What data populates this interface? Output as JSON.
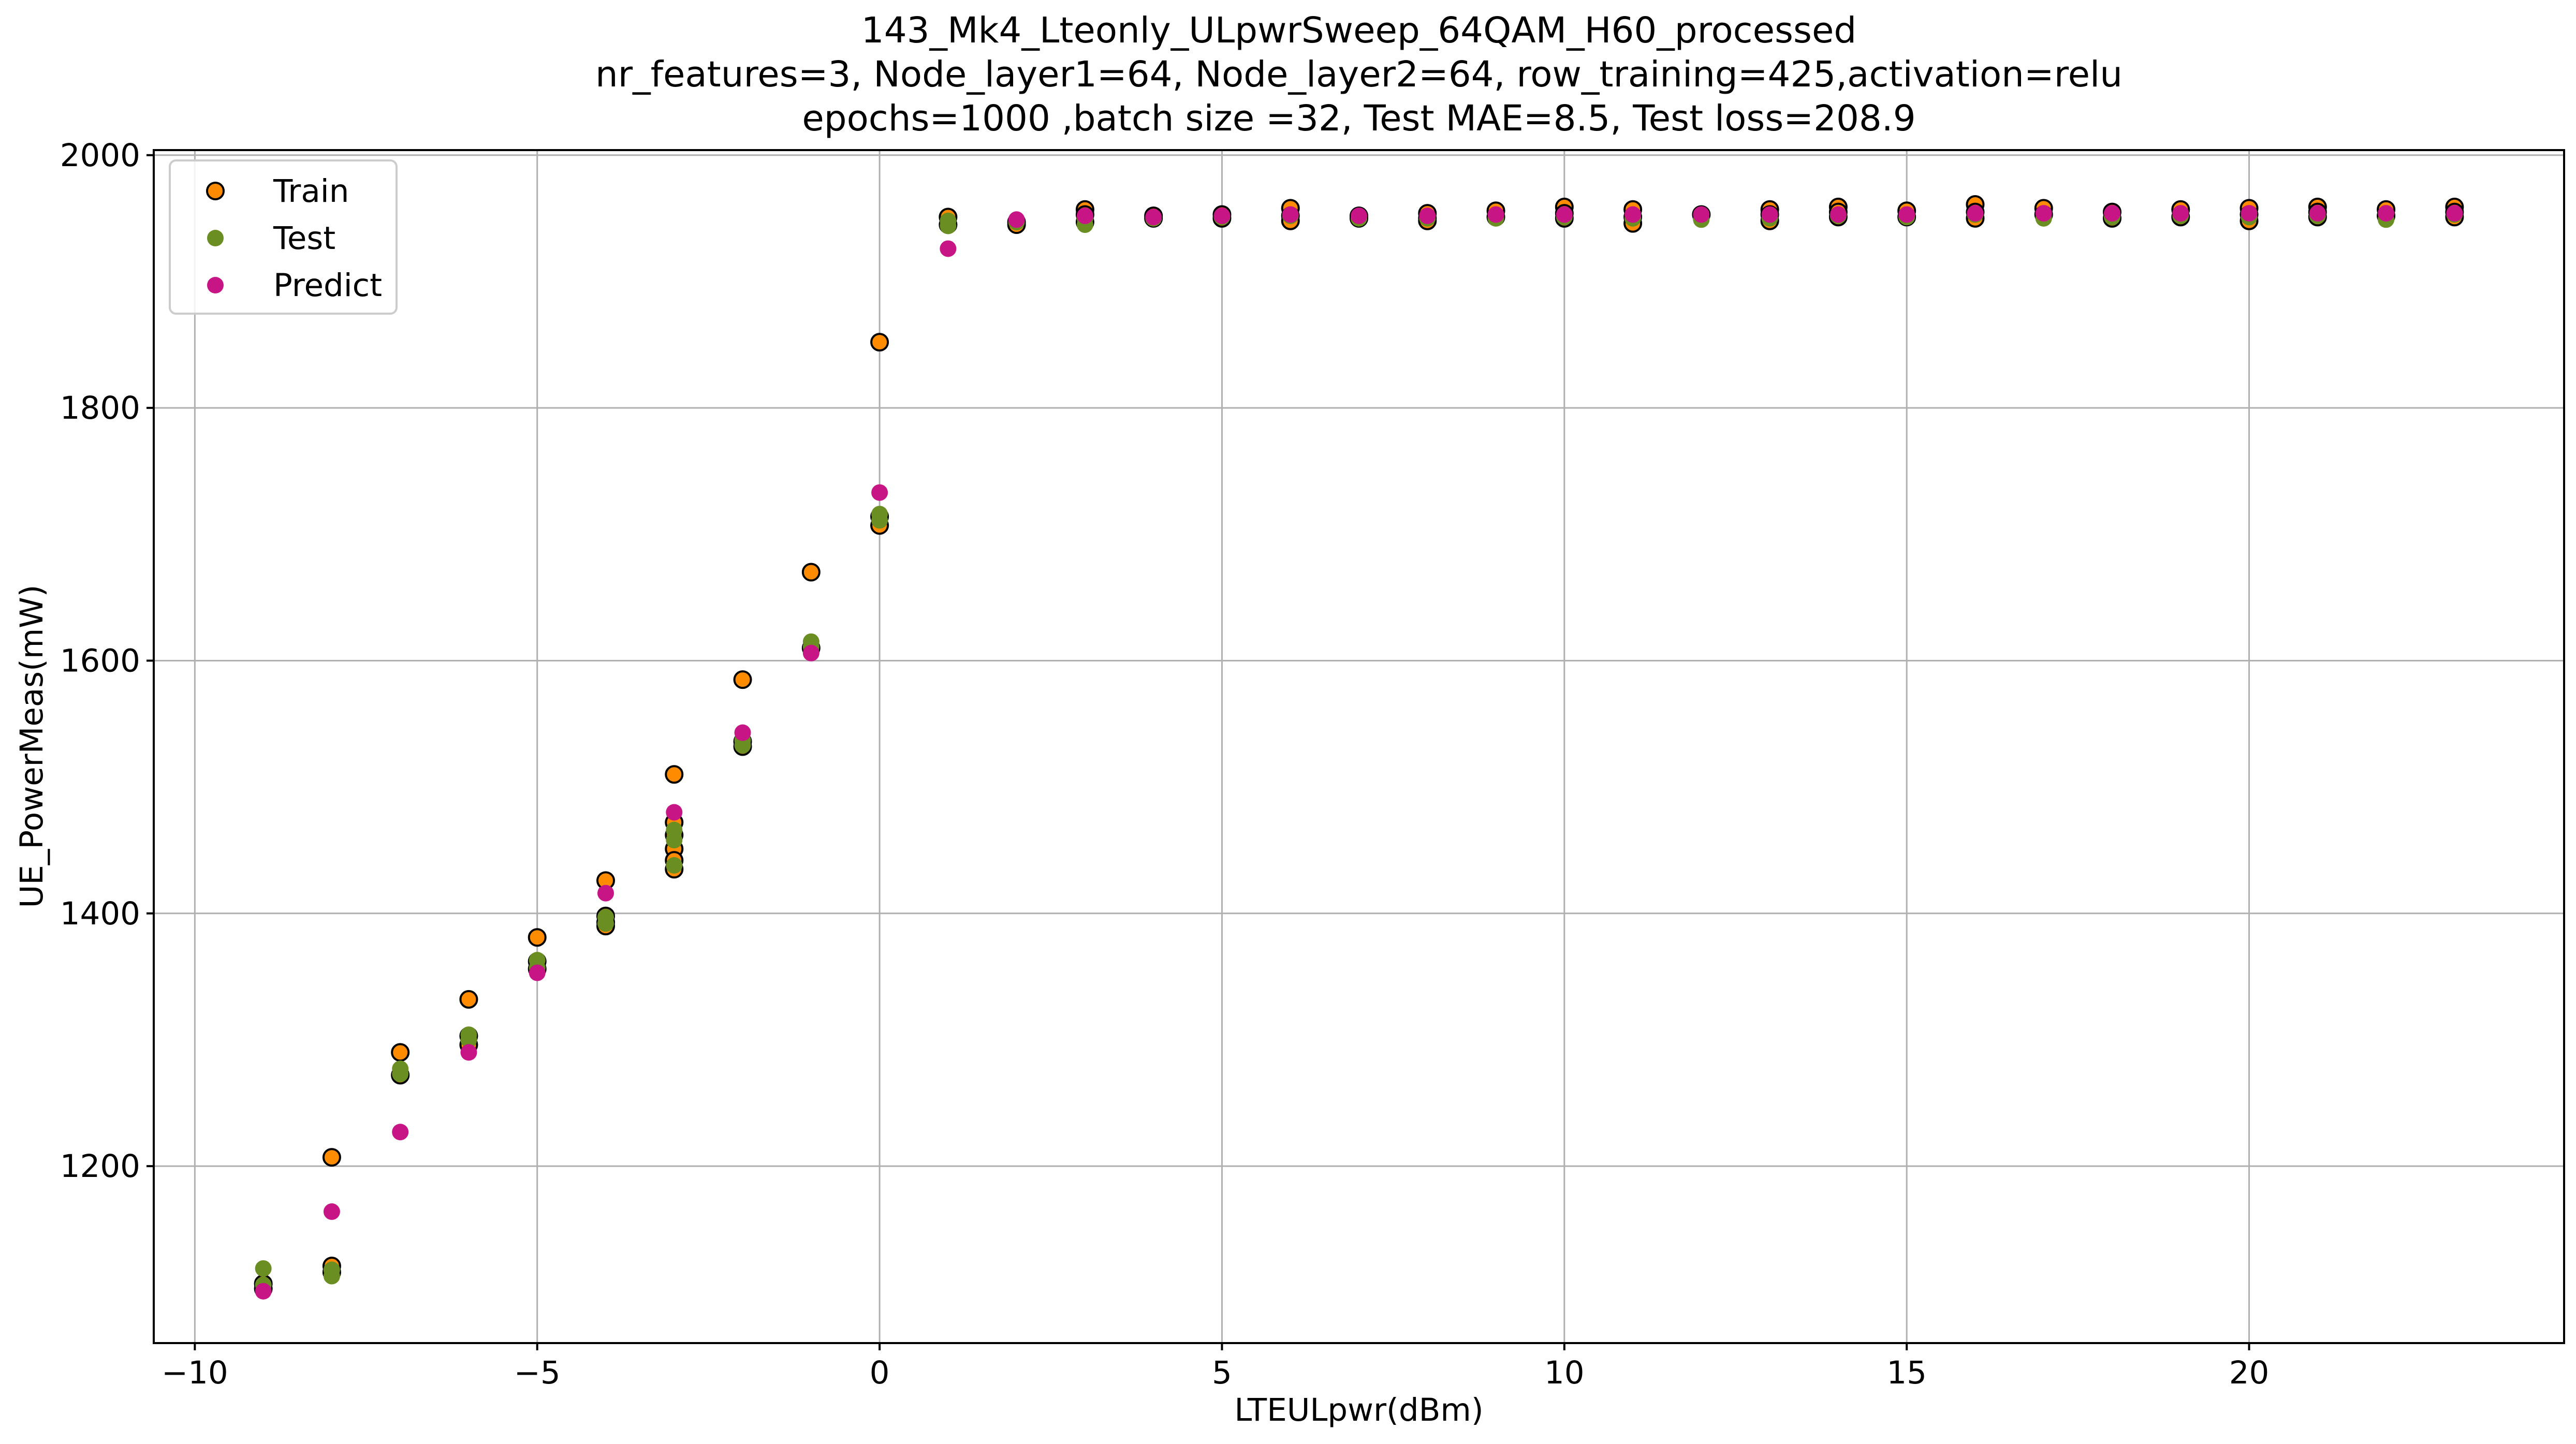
{
  "chart_data": {
    "type": "scatter",
    "title": [
      "143_Mk4_Lteonly_ULpwrSweep_64QAM_H60_processed",
      "nr_features=3, Node_layer1=64, Node_layer2=64, row_training=425,activation=relu",
      "epochs=1000 ,batch size =32, Test MAE=8.5, Test loss=208.9"
    ],
    "xlabel": "LTEULpwr(dBm)",
    "ylabel": "UE_PowerMeas(mW)",
    "xlim": [
      -10.6,
      24.6
    ],
    "ylim": [
      1060,
      2004
    ],
    "xticks": [
      -10,
      -5,
      0,
      5,
      10,
      15,
      20
    ],
    "xtick_labels": [
      "−10",
      "−5",
      "0",
      "5",
      "10",
      "15",
      "20"
    ],
    "yticks": [
      1200,
      1400,
      1600,
      1800,
      2000
    ],
    "ytick_labels": [
      "1200",
      "1400",
      "1600",
      "1800",
      "2000"
    ],
    "grid": true,
    "legend_position": "top-left",
    "series": [
      {
        "name": "Train",
        "color": "#ff8c00",
        "edgecolor": "#000000",
        "points": [
          [
            -9,
            1103
          ],
          [
            -9,
            1107
          ],
          [
            -8,
            1121
          ],
          [
            -8,
            1116
          ],
          [
            -8,
            1207
          ],
          [
            -7,
            1290
          ],
          [
            -7,
            1272
          ],
          [
            -6,
            1332
          ],
          [
            -6,
            1303
          ],
          [
            -6,
            1296
          ],
          [
            -5,
            1381
          ],
          [
            -5,
            1362
          ],
          [
            -5,
            1356
          ],
          [
            -4,
            1426
          ],
          [
            -4,
            1398
          ],
          [
            -4,
            1393
          ],
          [
            -4,
            1390
          ],
          [
            -3,
            1510
          ],
          [
            -3,
            1472
          ],
          [
            -3,
            1462
          ],
          [
            -3,
            1451
          ],
          [
            -3,
            1442
          ],
          [
            -3,
            1435
          ],
          [
            -2,
            1585
          ],
          [
            -2,
            1536
          ],
          [
            -2,
            1532
          ],
          [
            -1,
            1670
          ],
          [
            -1,
            1610
          ],
          [
            0,
            1852
          ],
          [
            0,
            1714
          ],
          [
            0,
            1707
          ],
          [
            1,
            1951
          ],
          [
            1,
            1945
          ],
          [
            2,
            1947
          ],
          [
            2,
            1945
          ],
          [
            3,
            1957
          ],
          [
            3,
            1953
          ],
          [
            3,
            1947
          ],
          [
            4,
            1952
          ],
          [
            4,
            1950
          ],
          [
            5,
            1953
          ],
          [
            5,
            1950
          ],
          [
            6,
            1958
          ],
          [
            6,
            1952
          ],
          [
            6,
            1948
          ],
          [
            7,
            1952
          ],
          [
            7,
            1950
          ],
          [
            8,
            1954
          ],
          [
            8,
            1950
          ],
          [
            8,
            1948
          ],
          [
            9,
            1956
          ],
          [
            9,
            1951
          ],
          [
            10,
            1959
          ],
          [
            10,
            1954
          ],
          [
            10,
            1950
          ],
          [
            11,
            1957
          ],
          [
            11,
            1951
          ],
          [
            11,
            1946
          ],
          [
            12,
            1953
          ],
          [
            13,
            1957
          ],
          [
            13,
            1953
          ],
          [
            13,
            1948
          ],
          [
            14,
            1959
          ],
          [
            14,
            1955
          ],
          [
            14,
            1951
          ],
          [
            15,
            1956
          ],
          [
            15,
            1951
          ],
          [
            16,
            1961
          ],
          [
            16,
            1955
          ],
          [
            16,
            1950
          ],
          [
            17,
            1958
          ],
          [
            17,
            1953
          ],
          [
            18,
            1955
          ],
          [
            18,
            1950
          ],
          [
            19,
            1957
          ],
          [
            19,
            1951
          ],
          [
            20,
            1958
          ],
          [
            20,
            1953
          ],
          [
            20,
            1948
          ],
          [
            21,
            1959
          ],
          [
            21,
            1955
          ],
          [
            21,
            1951
          ],
          [
            22,
            1957
          ],
          [
            22,
            1952
          ],
          [
            23,
            1959
          ],
          [
            23,
            1955
          ],
          [
            23,
            1951
          ]
        ]
      },
      {
        "name": "Test",
        "color": "#6b8e23",
        "edgecolor": null,
        "points": [
          [
            -9,
            1119
          ],
          [
            -9,
            1106
          ],
          [
            -8,
            1113
          ],
          [
            -8,
            1118
          ],
          [
            -7,
            1277
          ],
          [
            -7,
            1273
          ],
          [
            -6,
            1304
          ],
          [
            -6,
            1300
          ],
          [
            -5,
            1363
          ],
          [
            -5,
            1357
          ],
          [
            -4,
            1397
          ],
          [
            -4,
            1392
          ],
          [
            -3,
            1466
          ],
          [
            -3,
            1458
          ],
          [
            -3,
            1438
          ],
          [
            -2,
            1537
          ],
          [
            -2,
            1533
          ],
          [
            -1,
            1615
          ],
          [
            -1,
            1611
          ],
          [
            0,
            1716
          ],
          [
            0,
            1711
          ],
          [
            1,
            1948
          ],
          [
            1,
            1944
          ],
          [
            2,
            1947
          ],
          [
            3,
            1950
          ],
          [
            3,
            1945
          ],
          [
            4,
            1950
          ],
          [
            5,
            1951
          ],
          [
            6,
            1952
          ],
          [
            7,
            1950
          ],
          [
            8,
            1950
          ],
          [
            9,
            1950
          ],
          [
            10,
            1951
          ],
          [
            11,
            1950
          ],
          [
            12,
            1949
          ],
          [
            13,
            1950
          ],
          [
            14,
            1952
          ],
          [
            15,
            1951
          ],
          [
            16,
            1953
          ],
          [
            17,
            1950
          ],
          [
            18,
            1951
          ],
          [
            19,
            1952
          ],
          [
            20,
            1951
          ],
          [
            21,
            1952
          ],
          [
            22,
            1949
          ],
          [
            23,
            1953
          ]
        ]
      },
      {
        "name": "Predict",
        "color": "#c71585",
        "edgecolor": null,
        "points": [
          [
            -9,
            1101
          ],
          [
            -8,
            1164
          ],
          [
            -7,
            1227
          ],
          [
            -6,
            1290
          ],
          [
            -5,
            1353
          ],
          [
            -4,
            1416
          ],
          [
            -3,
            1480
          ],
          [
            -2,
            1543
          ],
          [
            -1,
            1606
          ],
          [
            0,
            1733
          ],
          [
            1,
            1926
          ],
          [
            2,
            1949
          ],
          [
            3,
            1952
          ],
          [
            4,
            1951
          ],
          [
            5,
            1952
          ],
          [
            6,
            1953
          ],
          [
            7,
            1952
          ],
          [
            8,
            1952
          ],
          [
            9,
            1953
          ],
          [
            10,
            1953
          ],
          [
            11,
            1953
          ],
          [
            12,
            1953
          ],
          [
            13,
            1953
          ],
          [
            14,
            1953
          ],
          [
            15,
            1953
          ],
          [
            16,
            1954
          ],
          [
            17,
            1954
          ],
          [
            18,
            1954
          ],
          [
            19,
            1954
          ],
          [
            20,
            1954
          ],
          [
            21,
            1954
          ],
          [
            22,
            1954
          ],
          [
            23,
            1954
          ]
        ]
      }
    ]
  }
}
